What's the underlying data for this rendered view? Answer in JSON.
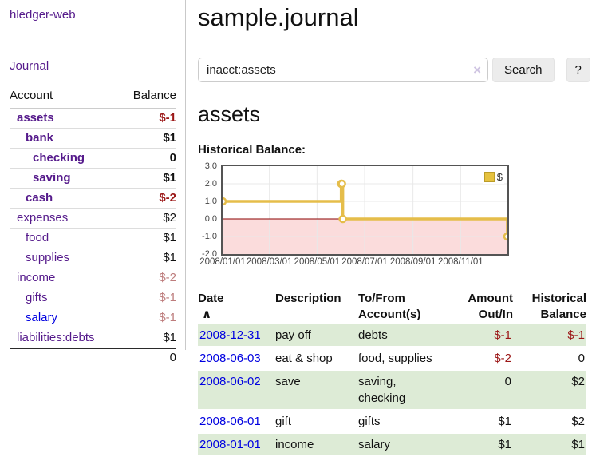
{
  "app": {
    "title": "hledger-web"
  },
  "nav": {
    "journal": "Journal"
  },
  "sidebar": {
    "col_account": "Account",
    "col_balance": "Balance",
    "accounts": [
      {
        "name": "assets",
        "balance": "$-1"
      },
      {
        "name": "bank",
        "balance": "$1"
      },
      {
        "name": "checking",
        "balance": "0"
      },
      {
        "name": "saving",
        "balance": "$1"
      },
      {
        "name": "cash",
        "balance": "$-2"
      },
      {
        "name": "expenses",
        "balance": "$2"
      },
      {
        "name": "food",
        "balance": "$1"
      },
      {
        "name": "supplies",
        "balance": "$1"
      },
      {
        "name": "income",
        "balance": "$-2"
      },
      {
        "name": "gifts",
        "balance": "$-1"
      },
      {
        "name": "salary",
        "balance": "$-1"
      },
      {
        "name": "liabilities:debts",
        "balance": "$1"
      }
    ],
    "total": "0"
  },
  "header": {
    "title": "sample.journal"
  },
  "search": {
    "value": "inacct:assets",
    "clear_icon": "×",
    "button_label": "Search",
    "help_label": "?"
  },
  "account_page": {
    "heading": "assets",
    "chart_title": "Historical Balance:"
  },
  "chart_data": {
    "type": "line",
    "step": true,
    "title": "Historical Balance:",
    "series": [
      {
        "name": "$",
        "color": "#e5bd4a",
        "x": [
          "2008-01-01",
          "2008-06-01",
          "2008-06-02",
          "2008-06-03",
          "2008-12-31"
        ],
        "values": [
          1,
          2,
          2,
          0,
          -1
        ]
      }
    ],
    "x_range": [
      "2008-01-01",
      "2008-12-31"
    ],
    "ylim": [
      -2,
      3
    ],
    "yticks": [
      3,
      2,
      1,
      0,
      -1,
      -2
    ],
    "ytick_labels": [
      "3.0",
      "2.0",
      "1.0",
      "0.0",
      "-1.0",
      "-2.0"
    ],
    "xticks_days": [
      0,
      60,
      121,
      182,
      244,
      305
    ],
    "total_days": 365,
    "xtick_labels": [
      "2008/01/01",
      "2008/03/01",
      "2008/05/01",
      "2008/07/01",
      "2008/09/01",
      "2008/11/01"
    ],
    "legend": {
      "label": "$",
      "position": "top-right"
    },
    "grid": true,
    "negative_fill": "#fbdcdc",
    "zero_line_color": "#8b0000",
    "grid_color": "#e8e8e8"
  },
  "table": {
    "headers": {
      "date": "Date",
      "sort_icon": "∧",
      "description": "Description",
      "tofrom_line1": "To/From",
      "tofrom_line2": "Account(s)",
      "amount_line1": "Amount",
      "amount_line2": "Out/In",
      "hist_line1": "Historical",
      "hist_line2": "Balance"
    },
    "rows": [
      {
        "date": "2008-12-31",
        "description": "pay off",
        "accounts": "debts",
        "amount": "$-1",
        "balance": "$-1"
      },
      {
        "date": "2008-06-03",
        "description": "eat & shop",
        "accounts": "food, supplies",
        "amount": "$-2",
        "balance": "0"
      },
      {
        "date": "2008-06-02",
        "description": "save",
        "accounts": "saving,\nchecking",
        "amount": "0",
        "balance": "$2"
      },
      {
        "date": "2008-06-01",
        "description": "gift",
        "accounts": "gifts",
        "amount": "$1",
        "balance": "$2"
      },
      {
        "date": "2008-01-01",
        "description": "income",
        "accounts": "salary",
        "amount": "$1",
        "balance": "$1"
      }
    ]
  }
}
